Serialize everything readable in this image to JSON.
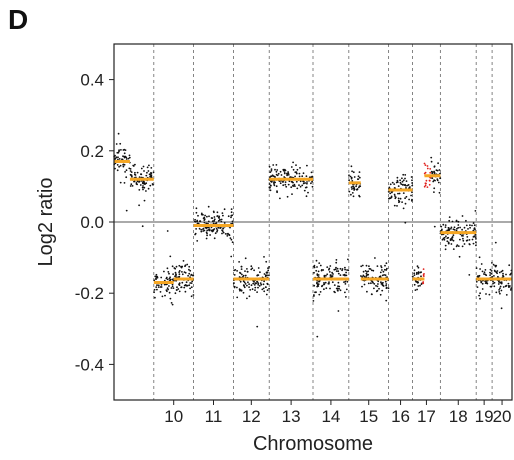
{
  "panel_label": "D",
  "chart_data": {
    "type": "scatter",
    "xlabel": "Chromosome",
    "ylabel": "Log2 ratio",
    "ylim": [
      -0.5,
      0.5
    ],
    "yticks": [
      -0.4,
      -0.2,
      0.0,
      0.2,
      0.4
    ],
    "ytick_labels": [
      "-0.4",
      "-0.2",
      "0.0",
      "0.2",
      "0.4"
    ],
    "x_tick_labels": [
      "10",
      "11",
      "12",
      "13",
      "14",
      "15",
      "16",
      "17",
      "18",
      "19",
      "20"
    ],
    "chromosome_boundaries": [
      {
        "start": 0.0,
        "end": 0.1,
        "label": ""
      },
      {
        "start": 0.1,
        "end": 0.2,
        "label": "10"
      },
      {
        "start": 0.2,
        "end": 0.3,
        "label": "11"
      },
      {
        "start": 0.3,
        "end": 0.39,
        "label": "12"
      },
      {
        "start": 0.39,
        "end": 0.5,
        "label": "13"
      },
      {
        "start": 0.5,
        "end": 0.59,
        "label": "14"
      },
      {
        "start": 0.59,
        "end": 0.69,
        "label": "15"
      },
      {
        "start": 0.69,
        "end": 0.75,
        "label": "16"
      },
      {
        "start": 0.75,
        "end": 0.82,
        "label": "17"
      },
      {
        "start": 0.82,
        "end": 0.91,
        "label": "18"
      },
      {
        "start": 0.91,
        "end": 0.95,
        "label": "19"
      },
      {
        "start": 0.95,
        "end": 1.0,
        "label": "20"
      }
    ],
    "segments": [
      {
        "x0": 0.0,
        "x1": 0.04,
        "y": 0.17
      },
      {
        "x0": 0.04,
        "x1": 0.1,
        "y": 0.12
      },
      {
        "x0": 0.1,
        "x1": 0.15,
        "y": -0.17
      },
      {
        "x0": 0.15,
        "x1": 0.2,
        "y": -0.16
      },
      {
        "x0": 0.2,
        "x1": 0.3,
        "y": -0.01
      },
      {
        "x0": 0.3,
        "x1": 0.39,
        "y": -0.16
      },
      {
        "x0": 0.39,
        "x1": 0.5,
        "y": 0.12
      },
      {
        "x0": 0.5,
        "x1": 0.59,
        "y": -0.16
      },
      {
        "x0": 0.59,
        "x1": 0.62,
        "y": 0.11
      },
      {
        "x0": 0.62,
        "x1": 0.69,
        "y": -0.16
      },
      {
        "x0": 0.69,
        "x1": 0.75,
        "y": 0.09
      },
      {
        "x0": 0.75,
        "x1": 0.78,
        "y": -0.16
      },
      {
        "x0": 0.78,
        "x1": 0.82,
        "y": 0.13
      },
      {
        "x0": 0.82,
        "x1": 0.91,
        "y": -0.03
      },
      {
        "x0": 0.91,
        "x1": 0.95,
        "y": -0.16
      },
      {
        "x0": 0.95,
        "x1": 1.0,
        "y": -0.16
      }
    ],
    "highlight_region": {
      "chromosome": "17",
      "color": "#e0201c"
    },
    "point_colors": {
      "normal": "#111111",
      "highlight": "#e0201c",
      "segment": "#f5a623"
    }
  }
}
